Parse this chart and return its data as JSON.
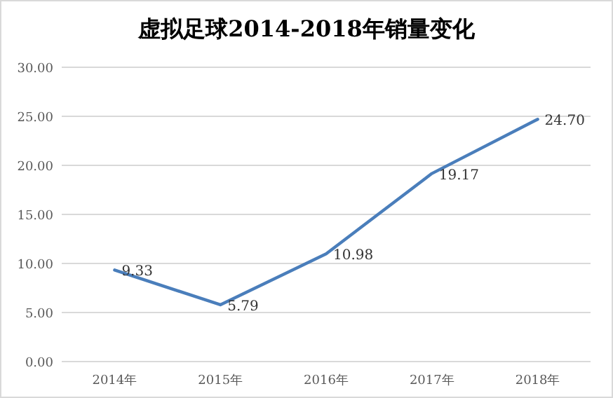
{
  "chart_data": {
    "type": "line",
    "title": "虚拟足球2014-2018年销量变化",
    "categories": [
      "2014年",
      "2015年",
      "2016年",
      "2017年",
      "2018年"
    ],
    "series": [
      {
        "color": "#4a7ebb",
        "values": [
          9.33,
          5.79,
          10.98,
          19.17,
          24.7
        ],
        "value_labels": [
          "9.33",
          "5.79",
          "10.98",
          "19.17",
          "24.70"
        ]
      }
    ],
    "ylim": [
      0,
      30
    ],
    "yticks": [
      {
        "value": 0,
        "label": "0.00"
      },
      {
        "value": 5,
        "label": "5.00"
      },
      {
        "value": 10,
        "label": "10.00"
      },
      {
        "value": 15,
        "label": "15.00"
      },
      {
        "value": 20,
        "label": "20.00"
      },
      {
        "value": 25,
        "label": "25.00"
      },
      {
        "value": 30,
        "label": "30.00"
      }
    ],
    "grid": "y",
    "marker": "none",
    "line_style": "solid"
  }
}
